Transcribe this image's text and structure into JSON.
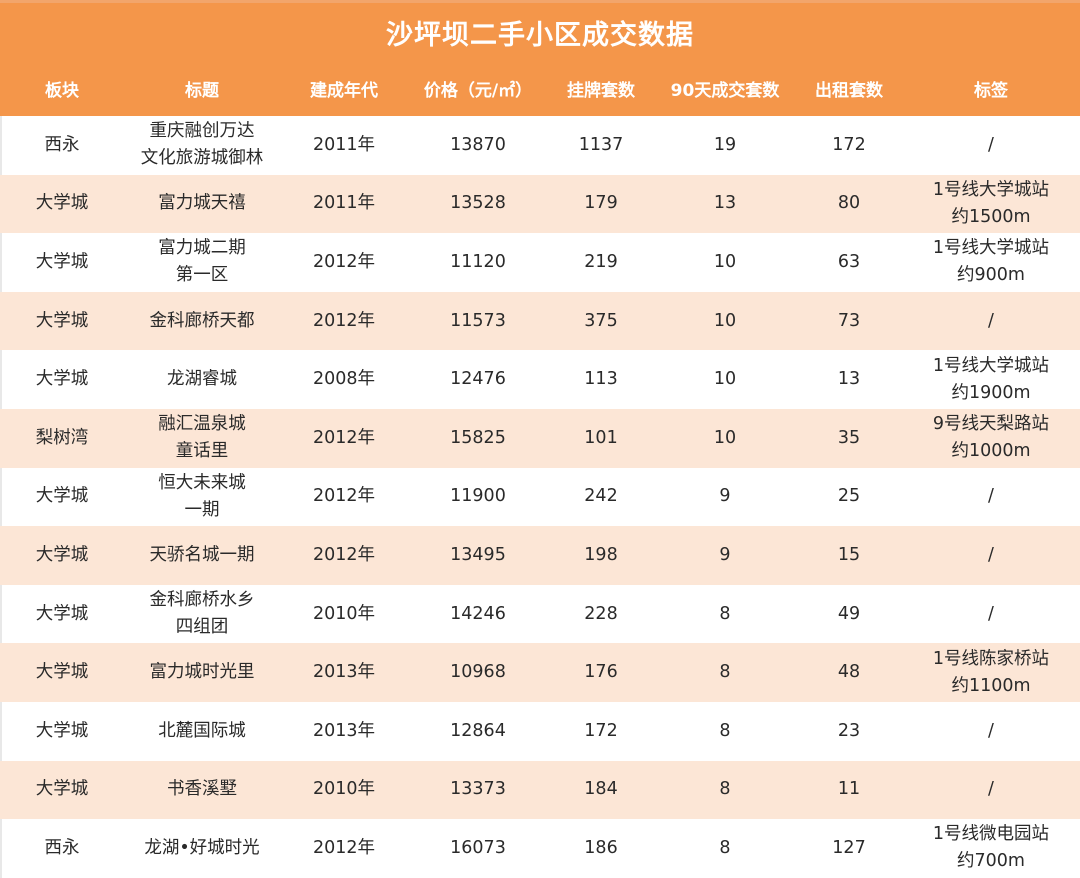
{
  "title": "沙坪坝二手小区成交数据",
  "colors": {
    "header_bg": "#F4964A",
    "row_alt_bg": "#FCE6D6",
    "row_bg": "#FFFFFF",
    "header_text": "#FFFFFF",
    "body_text": "#2A2A2A"
  },
  "columns": [
    "板块",
    "标题",
    "建成年代",
    "价格（元/㎡）",
    "挂牌套数",
    "90天成交套数",
    "出租套数",
    "标签"
  ],
  "rows": [
    {
      "district": "西永",
      "name": [
        "重庆融创万达",
        "文化旅游城御林"
      ],
      "year": "2011年",
      "price": "13870",
      "listings": "1137",
      "sold_90d": "19",
      "rentals": "172",
      "tag": [
        "/"
      ]
    },
    {
      "district": "大学城",
      "name": [
        "富力城天禧"
      ],
      "year": "2011年",
      "price": "13528",
      "listings": "179",
      "sold_90d": "13",
      "rentals": "80",
      "tag": [
        "1号线大学城站",
        "约1500m"
      ]
    },
    {
      "district": "大学城",
      "name": [
        "富力城二期",
        "第一区"
      ],
      "year": "2012年",
      "price": "11120",
      "listings": "219",
      "sold_90d": "10",
      "rentals": "63",
      "tag": [
        "1号线大学城站",
        "约900m"
      ]
    },
    {
      "district": "大学城",
      "name": [
        "金科廊桥天都"
      ],
      "year": "2012年",
      "price": "11573",
      "listings": "375",
      "sold_90d": "10",
      "rentals": "73",
      "tag": [
        "/"
      ]
    },
    {
      "district": "大学城",
      "name": [
        "龙湖睿城"
      ],
      "year": "2008年",
      "price": "12476",
      "listings": "113",
      "sold_90d": "10",
      "rentals": "13",
      "tag": [
        "1号线大学城站",
        "约1900m"
      ]
    },
    {
      "district": "梨树湾",
      "name": [
        "融汇温泉城",
        "童话里"
      ],
      "year": "2012年",
      "price": "15825",
      "listings": "101",
      "sold_90d": "10",
      "rentals": "35",
      "tag": [
        "9号线天梨路站",
        "约1000m"
      ]
    },
    {
      "district": "大学城",
      "name": [
        "恒大未来城",
        "一期"
      ],
      "year": "2012年",
      "price": "11900",
      "listings": "242",
      "sold_90d": "9",
      "rentals": "25",
      "tag": [
        "/"
      ]
    },
    {
      "district": "大学城",
      "name": [
        "天骄名城一期"
      ],
      "year": "2012年",
      "price": "13495",
      "listings": "198",
      "sold_90d": "9",
      "rentals": "15",
      "tag": [
        "/"
      ]
    },
    {
      "district": "大学城",
      "name": [
        "金科廊桥水乡",
        "四组团"
      ],
      "year": "2010年",
      "price": "14246",
      "listings": "228",
      "sold_90d": "8",
      "rentals": "49",
      "tag": [
        "/"
      ]
    },
    {
      "district": "大学城",
      "name": [
        "富力城时光里"
      ],
      "year": "2013年",
      "price": "10968",
      "listings": "176",
      "sold_90d": "8",
      "rentals": "48",
      "tag": [
        "1号线陈家桥站",
        "约1100m"
      ]
    },
    {
      "district": "大学城",
      "name": [
        "北麓国际城"
      ],
      "year": "2013年",
      "price": "12864",
      "listings": "172",
      "sold_90d": "8",
      "rentals": "23",
      "tag": [
        "/"
      ]
    },
    {
      "district": "大学城",
      "name": [
        "书香溪墅"
      ],
      "year": "2010年",
      "price": "13373",
      "listings": "184",
      "sold_90d": "8",
      "rentals": "11",
      "tag": [
        "/"
      ]
    },
    {
      "district": "西永",
      "name": [
        "龙湖•好城时光"
      ],
      "year": "2012年",
      "price": "16073",
      "listings": "186",
      "sold_90d": "8",
      "rentals": "127",
      "tag": [
        "1号线微电园站",
        "约700m"
      ]
    }
  ]
}
